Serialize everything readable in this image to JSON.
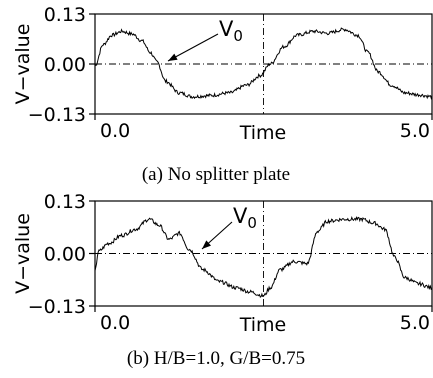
{
  "chart_data": [
    {
      "type": "line",
      "caption": "(a)  No splitter plate",
      "ylabel": "V−value",
      "xlabel": "Time",
      "xlim": [
        0.0,
        5.0
      ],
      "ylim": [
        -0.13,
        0.13
      ],
      "ytick_labels": [
        "0.13",
        "0.00",
        "−0.13"
      ],
      "xtick_labels": [
        "0.0",
        "5.0"
      ],
      "annotation": {
        "text": "V",
        "subscript": "0"
      },
      "reference_lines": {
        "x": 2.5,
        "y": 0.0
      },
      "series": [
        {
          "x": [
            0.0,
            0.12,
            0.25,
            0.4,
            0.55,
            0.7,
            0.82,
            0.92,
            1.05,
            1.25,
            1.45,
            1.7,
            2.0,
            2.25,
            2.45,
            2.6,
            2.8,
            3.0,
            3.25,
            3.45,
            3.7,
            3.9,
            4.05,
            4.2,
            4.4,
            4.6,
            4.8,
            5.0
          ],
          "y": [
            -0.005,
            0.05,
            0.075,
            0.085,
            0.078,
            0.06,
            0.03,
            0.005,
            -0.045,
            -0.075,
            -0.085,
            -0.082,
            -0.075,
            -0.055,
            -0.03,
            0.0,
            0.045,
            0.075,
            0.085,
            0.08,
            0.09,
            0.075,
            0.03,
            -0.02,
            -0.055,
            -0.075,
            -0.08,
            -0.085
          ]
        }
      ]
    },
    {
      "type": "line",
      "caption": "(b)  H/B=1.0,  G/B=0.75",
      "ylabel": "V−value",
      "xlabel": "Time",
      "xlim": [
        0.0,
        5.0
      ],
      "ylim": [
        -0.13,
        0.13
      ],
      "ytick_labels": [
        "0.13",
        "0.00",
        "−0.13"
      ],
      "xtick_labels": [
        "0.0",
        "5.0"
      ],
      "annotation": {
        "text": "V",
        "subscript": "0"
      },
      "reference_lines": {
        "x": 2.5,
        "y": 0.0
      },
      "series": [
        {
          "x": [
            0.0,
            0.05,
            0.2,
            0.4,
            0.6,
            0.8,
            0.95,
            1.1,
            1.25,
            1.4,
            1.6,
            1.85,
            2.1,
            2.3,
            2.5,
            2.6,
            2.75,
            2.95,
            3.15,
            3.3,
            3.45,
            3.7,
            3.95,
            4.15,
            4.3,
            4.45,
            4.6,
            4.8,
            5.0
          ],
          "y": [
            -0.045,
            0.005,
            0.025,
            0.045,
            0.06,
            0.085,
            0.07,
            0.035,
            0.05,
            0.01,
            -0.04,
            -0.07,
            -0.085,
            -0.095,
            -0.105,
            -0.085,
            -0.04,
            -0.02,
            -0.025,
            0.055,
            0.08,
            0.085,
            0.085,
            0.075,
            0.06,
            -0.01,
            -0.06,
            -0.075,
            -0.085
          ]
        }
      ]
    }
  ]
}
